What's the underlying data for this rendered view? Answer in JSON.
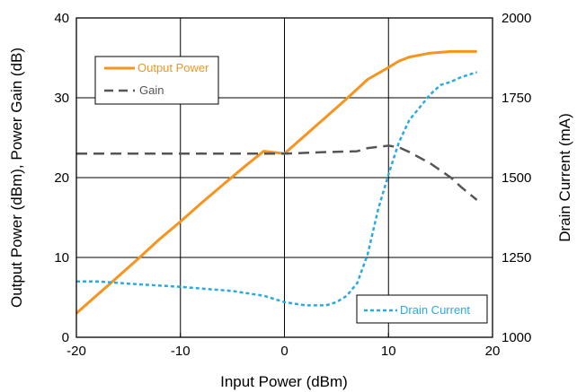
{
  "chart_data": {
    "type": "line",
    "xlabel": "Input Power (dBm)",
    "ylabel_left": "Output Power (dBm), Power Gain (dB)",
    "ylabel_right": "Drain Current (mA)",
    "xlim": [
      -20,
      20
    ],
    "ylim_left": [
      0,
      40
    ],
    "ylim_right": [
      1000,
      2000
    ],
    "x_ticks": [
      -20,
      -10,
      0,
      10,
      20
    ],
    "x_tick_labels": [
      "-20",
      "-10",
      "0",
      "10",
      "20"
    ],
    "y_left_ticks": [
      0,
      10,
      20,
      30,
      40
    ],
    "y_left_tick_labels": [
      "0",
      "10",
      "20",
      "30",
      "40"
    ],
    "y_right_ticks": [
      1000,
      1250,
      1500,
      1750,
      2000
    ],
    "y_right_tick_labels": [
      "1000",
      "1250",
      "1500",
      "1750",
      "2000"
    ],
    "grid": true,
    "legends": [
      {
        "placement": "upper-left",
        "entries": [
          "Output Power",
          "Gain"
        ]
      },
      {
        "placement": "lower-right",
        "entries": [
          "Drain Current"
        ]
      }
    ],
    "series": [
      {
        "name": "Output Power",
        "axis": "left",
        "color": "#f7941d",
        "dash": "solid",
        "points": [
          [
            -20,
            3
          ],
          [
            -18,
            5.3
          ],
          [
            -16,
            7.6
          ],
          [
            -14,
            9.9
          ],
          [
            -12,
            12.3
          ],
          [
            -10,
            14.5
          ],
          [
            -8,
            16.8
          ],
          [
            -6,
            19
          ],
          [
            -4,
            21.2
          ],
          [
            -2,
            23.3
          ],
          [
            0,
            23
          ],
          [
            2,
            25.3
          ],
          [
            4,
            27.6
          ],
          [
            6,
            29.9
          ],
          [
            8,
            32.3
          ],
          [
            10,
            33.8
          ],
          [
            11,
            34.6
          ],
          [
            12,
            35.1
          ],
          [
            14,
            35.6
          ],
          [
            16,
            35.8
          ],
          [
            18.5,
            35.8
          ]
        ]
      },
      {
        "name": "Gain",
        "axis": "left",
        "color": "#555555",
        "dash": "dashed",
        "points": [
          [
            -20,
            23
          ],
          [
            -15,
            23
          ],
          [
            -10,
            23
          ],
          [
            -5,
            23
          ],
          [
            0,
            23
          ],
          [
            2,
            23.1
          ],
          [
            4,
            23.2
          ],
          [
            7,
            23.3
          ],
          [
            8,
            23.7
          ],
          [
            10,
            24
          ],
          [
            11,
            23.8
          ],
          [
            12,
            23.2
          ],
          [
            14,
            21.8
          ],
          [
            16,
            20
          ],
          [
            17,
            18.8
          ],
          [
            18.5,
            17.2
          ]
        ]
      },
      {
        "name": "Drain Current",
        "axis": "right",
        "color": "#29aae1",
        "dash": "dotted",
        "points": [
          [
            -20,
            1175
          ],
          [
            -18,
            1175
          ],
          [
            -15,
            1168
          ],
          [
            -10,
            1158
          ],
          [
            -5,
            1145
          ],
          [
            -2,
            1130
          ],
          [
            0,
            1110
          ],
          [
            2,
            1100
          ],
          [
            4,
            1100
          ],
          [
            5,
            1110
          ],
          [
            6,
            1130
          ],
          [
            7,
            1170
          ],
          [
            8,
            1260
          ],
          [
            9,
            1400
          ],
          [
            10,
            1510
          ],
          [
            11,
            1610
          ],
          [
            12,
            1680
          ],
          [
            13,
            1720
          ],
          [
            14,
            1760
          ],
          [
            15,
            1790
          ],
          [
            16,
            1800
          ],
          [
            17,
            1815
          ],
          [
            18.5,
            1830
          ]
        ]
      }
    ]
  }
}
